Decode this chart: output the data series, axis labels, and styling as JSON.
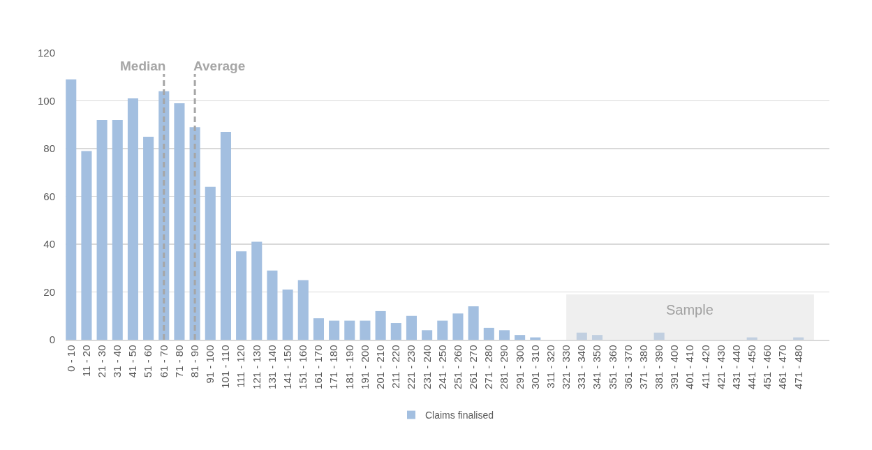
{
  "chart_data": {
    "type": "bar",
    "categories": [
      "0 - 10",
      "11 - 20",
      "21 - 30",
      "31 - 40",
      "41 - 50",
      "51 - 60",
      "61 - 70",
      "71 - 80",
      "81 - 90",
      "91 - 100",
      "101 - 110",
      "111 - 120",
      "121 - 130",
      "131 - 140",
      "141 - 150",
      "151 - 160",
      "161 - 170",
      "171 - 180",
      "181 - 190",
      "191 - 200",
      "201 - 210",
      "211 - 220",
      "221 - 230",
      "231 - 240",
      "241 - 250",
      "251 - 260",
      "261 - 270",
      "271 - 280",
      "281 - 290",
      "291 - 300",
      "301 - 310",
      "311 - 320",
      "321 - 330",
      "331 - 340",
      "341 - 350",
      "351 - 360",
      "361 - 370",
      "371 - 380",
      "381 - 390",
      "391 - 400",
      "401 - 410",
      "411 - 420",
      "421 - 430",
      "431 - 440",
      "441 - 450",
      "451 - 460",
      "461 - 470",
      "471 - 480"
    ],
    "series": [
      {
        "name": "Claims finalised",
        "color": "#a3bfe0",
        "values": [
          109,
          79,
          92,
          92,
          101,
          85,
          104,
          99,
          89,
          64,
          87,
          37,
          41,
          29,
          21,
          25,
          9,
          8,
          8,
          8,
          12,
          7,
          10,
          4,
          8,
          11,
          14,
          5,
          4,
          2,
          1,
          0,
          0,
          3,
          2,
          0,
          0,
          0,
          3,
          0,
          0,
          0,
          0,
          0,
          1,
          0,
          0,
          1
        ]
      }
    ],
    "ylim": [
      0,
      120
    ],
    "yticks": [
      0,
      20,
      40,
      60,
      80,
      100,
      120
    ],
    "grid": "y",
    "legend": "bottom",
    "ref_lines": [
      {
        "axis": "x",
        "value": "61 - 70",
        "label": "Median",
        "color": "#a6a6a6",
        "line_style": "dashed"
      },
      {
        "axis": "x",
        "value": "81 - 90",
        "label": "Average",
        "color": "#a6a6a6",
        "line_style": "dashed"
      }
    ],
    "bands": [
      {
        "axis": "x",
        "from": "321 - 330",
        "to": "471 - 480",
        "label": "Sample",
        "color": "#e0e0e0"
      }
    ]
  }
}
